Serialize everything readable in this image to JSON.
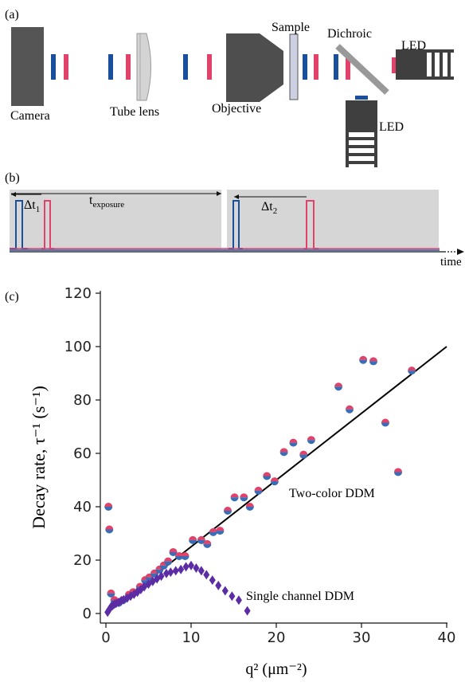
{
  "panel_a": {
    "label": "(a)",
    "components": {
      "camera": "Camera",
      "tube_lens": "Tube lens",
      "objective": "Objective",
      "sample": "Sample",
      "dichroic": "Dichroic",
      "led_right": "LED",
      "led_bottom": "LED"
    },
    "colors": {
      "blue": "#1a4f9c",
      "red": "#e0426a",
      "gray": "#555555",
      "light_gray": "#c8c8c8"
    }
  },
  "panel_b": {
    "label": "(b)",
    "dt1": "Δt",
    "dt1_sub": "1",
    "exposure": "t",
    "exposure_sub": "exposure",
    "dt2": "Δt",
    "dt2_sub": "2",
    "time_label": "time"
  },
  "panel_c": {
    "label": "(c)",
    "annotation_two_color": "Two-color DDM",
    "annotation_single": "Single channel DDM"
  },
  "chart_data": {
    "type": "scatter",
    "ylabel": "Decay rate, τ⁻¹ (s⁻¹)",
    "xlabel": "q² (μm⁻²)",
    "xlim": [
      0,
      40
    ],
    "ylim": [
      0,
      120
    ],
    "xticks": [
      0,
      10,
      20,
      30,
      40
    ],
    "yticks": [
      0,
      20,
      40,
      60,
      80,
      100,
      120
    ],
    "series": [
      {
        "name": "Two-color DDM",
        "marker": "circle",
        "colors": [
          "#e0426a",
          "#3a6db5"
        ],
        "points": [
          [
            0.3,
            40
          ],
          [
            0.4,
            31.5
          ],
          [
            0.6,
            7.5
          ],
          [
            1.0,
            5
          ],
          [
            1.5,
            4
          ],
          [
            2.0,
            5
          ],
          [
            2.7,
            7
          ],
          [
            3.2,
            8
          ],
          [
            4.0,
            10
          ],
          [
            4.6,
            12.5
          ],
          [
            5.1,
            13.5
          ],
          [
            5.7,
            15
          ],
          [
            6.3,
            16.5
          ],
          [
            6.8,
            18
          ],
          [
            7.3,
            19.5
          ],
          [
            7.9,
            23
          ],
          [
            8.6,
            21.5
          ],
          [
            9.3,
            21.5
          ],
          [
            10.2,
            27.5
          ],
          [
            11.2,
            27.5
          ],
          [
            11.9,
            26
          ],
          [
            12.6,
            30.5
          ],
          [
            13.4,
            31
          ],
          [
            14.3,
            38.5
          ],
          [
            15.1,
            43.5
          ],
          [
            16.2,
            43.5
          ],
          [
            16.9,
            40
          ],
          [
            17.9,
            46
          ],
          [
            18.9,
            51.5
          ],
          [
            19.8,
            49.5
          ],
          [
            20.9,
            60.5
          ],
          [
            22.0,
            64
          ],
          [
            23.2,
            59.5
          ],
          [
            24.1,
            65
          ],
          [
            27.3,
            85
          ],
          [
            28.6,
            76.5
          ],
          [
            30.2,
            95
          ],
          [
            31.4,
            94.5
          ],
          [
            32.8,
            71.5
          ],
          [
            34.3,
            53
          ],
          [
            35.9,
            91
          ]
        ]
      },
      {
        "name": "Single channel DDM",
        "marker": "diamond",
        "colors": [
          "#5b2ca3"
        ],
        "points": [
          [
            0.2,
            0.5
          ],
          [
            0.4,
            1.5
          ],
          [
            0.6,
            2.5
          ],
          [
            0.8,
            3.0
          ],
          [
            1.0,
            3.5
          ],
          [
            1.2,
            3.8
          ],
          [
            1.5,
            4.2
          ],
          [
            1.8,
            4.8
          ],
          [
            2.1,
            5.2
          ],
          [
            2.5,
            5.8
          ],
          [
            2.9,
            6.5
          ],
          [
            3.3,
            7.2
          ],
          [
            3.7,
            8.0
          ],
          [
            4.1,
            9.0
          ],
          [
            4.5,
            10.0
          ],
          [
            5.0,
            11.0
          ],
          [
            5.5,
            12.0
          ],
          [
            6.0,
            13.0
          ],
          [
            6.5,
            14.0
          ],
          [
            7.1,
            15.0
          ],
          [
            7.6,
            15.5
          ],
          [
            8.2,
            16.0
          ],
          [
            8.8,
            16.5
          ],
          [
            9.4,
            17.5
          ],
          [
            10.0,
            18.0
          ],
          [
            10.6,
            17.0
          ],
          [
            11.2,
            16.0
          ],
          [
            11.8,
            14.5
          ],
          [
            12.5,
            12.5
          ],
          [
            13.2,
            10.5
          ],
          [
            14.0,
            8.5
          ],
          [
            14.8,
            6.5
          ],
          [
            15.6,
            5.0
          ],
          [
            16.6,
            1.0
          ]
        ]
      },
      {
        "name": "fit",
        "type": "line",
        "colors": [
          "#000000"
        ],
        "points": [
          [
            0,
            0
          ],
          [
            40,
            100
          ]
        ]
      }
    ]
  }
}
